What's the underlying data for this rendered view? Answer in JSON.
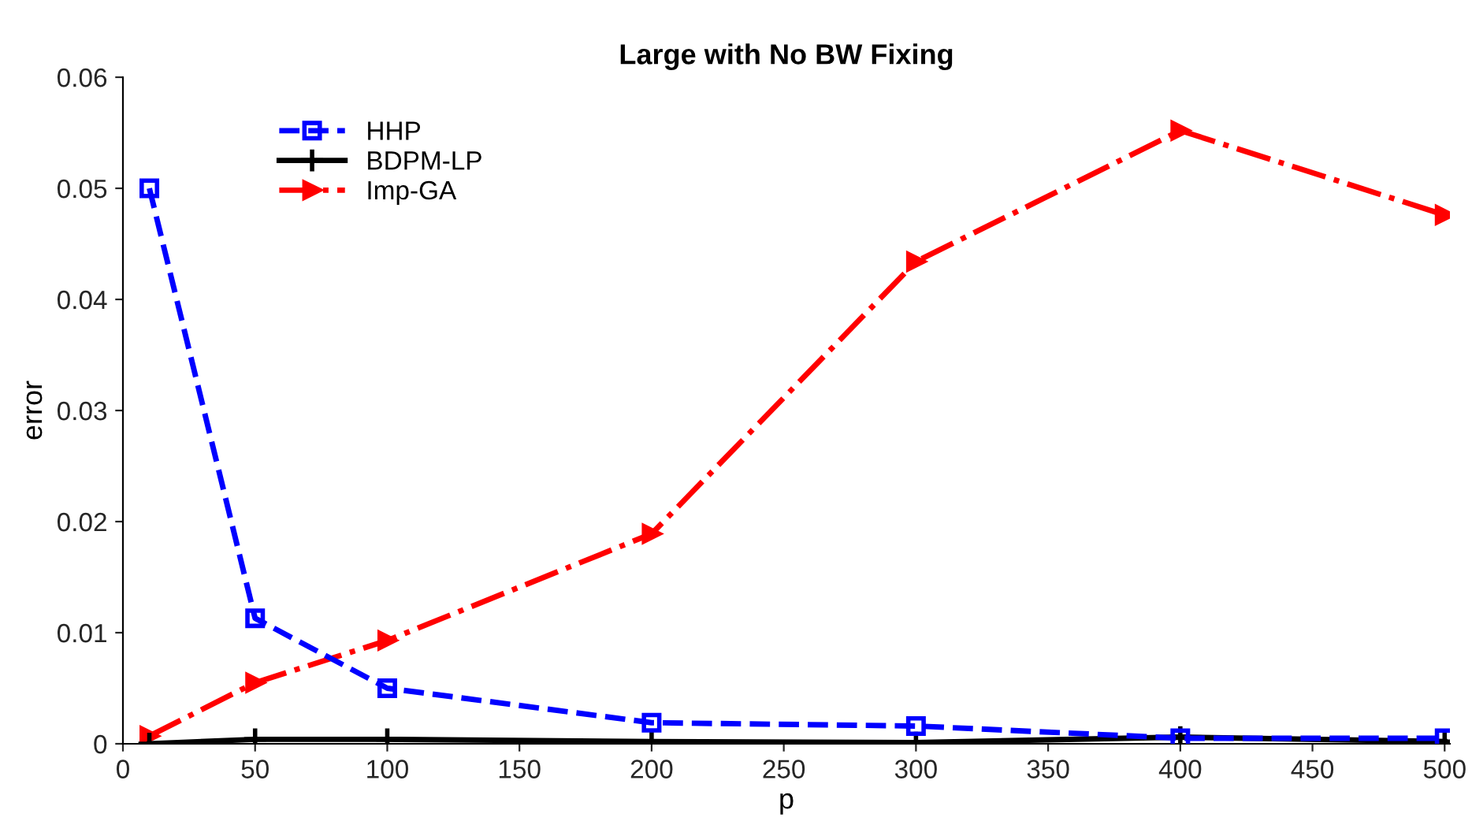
{
  "chart_data": {
    "type": "line",
    "title": "Large with No BW Fixing",
    "xlabel": "p",
    "ylabel": "error",
    "x": [
      10,
      50,
      100,
      200,
      300,
      400,
      500
    ],
    "series": [
      {
        "name": "HHP",
        "color": "#0000ff",
        "marker": "square",
        "line_style": "dashed",
        "values": [
          0.05,
          0.0113,
          0.005,
          0.0019,
          0.0016,
          0.0005,
          0.0005
        ]
      },
      {
        "name": "BDPM-LP",
        "color": "#000000",
        "marker": "cross",
        "line_style": "solid",
        "values": [
          0.0,
          0.0004,
          0.0004,
          0.0002,
          0.0001,
          0.0006,
          0.0002
        ]
      },
      {
        "name": "Imp-GA",
        "color": "#ff0000",
        "marker": "triangle",
        "line_style": "dashdot",
        "values": [
          0.0007,
          0.0055,
          0.0093,
          0.0189,
          0.0434,
          0.0552,
          0.0476
        ]
      }
    ],
    "xlim": [
      0,
      502
    ],
    "xticks": [
      0,
      50,
      100,
      150,
      200,
      250,
      300,
      350,
      400,
      450,
      500
    ],
    "ylim": [
      0,
      0.06
    ],
    "yticks": [
      0,
      0.01,
      0.02,
      0.03,
      0.04,
      0.05,
      0.06
    ],
    "grid": false,
    "legend": "top left"
  }
}
